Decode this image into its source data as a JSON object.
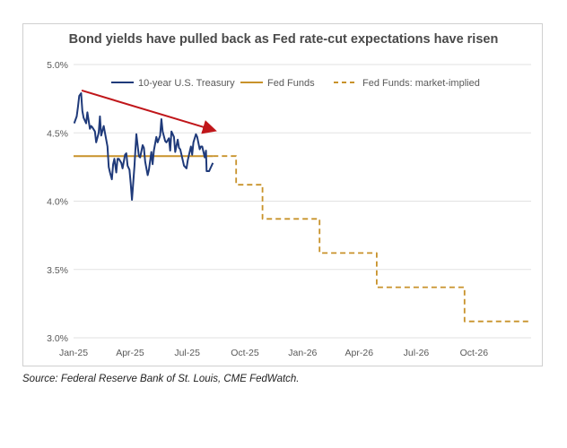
{
  "chart_data": {
    "type": "line",
    "title": "Bond yields have pulled back as Fed rate-cut expectations have risen",
    "xlabel": "",
    "ylabel": "",
    "x_ticks": [
      "Jan-25",
      "Apr-25",
      "Jul-25",
      "Oct-25",
      "Jan-26",
      "Apr-26",
      "Jul-26",
      "Oct-26"
    ],
    "y_ticks": [
      "3.0%",
      "3.5%",
      "4.0%",
      "4.5%",
      "5.0%"
    ],
    "ylim": [
      3.0,
      5.0
    ],
    "xlim": [
      "2025-01-01",
      "2026-12-31"
    ],
    "grid": "horizontal",
    "legend_position": "top",
    "series": [
      {
        "name": "10-year U.S. Treasury",
        "color": "#1f3a7a",
        "style": "solid",
        "points": [
          [
            "2025-01-02",
            4.57
          ],
          [
            "2025-01-06",
            4.62
          ],
          [
            "2025-01-08",
            4.69
          ],
          [
            "2025-01-10",
            4.77
          ],
          [
            "2025-01-13",
            4.79
          ],
          [
            "2025-01-15",
            4.66
          ],
          [
            "2025-01-17",
            4.61
          ],
          [
            "2025-01-21",
            4.57
          ],
          [
            "2025-01-23",
            4.65
          ],
          [
            "2025-01-27",
            4.53
          ],
          [
            "2025-01-29",
            4.55
          ],
          [
            "2025-01-31",
            4.54
          ],
          [
            "2025-02-04",
            4.51
          ],
          [
            "2025-02-06",
            4.43
          ],
          [
            "2025-02-10",
            4.5
          ],
          [
            "2025-02-12",
            4.62
          ],
          [
            "2025-02-14",
            4.48
          ],
          [
            "2025-02-18",
            4.55
          ],
          [
            "2025-02-20",
            4.5
          ],
          [
            "2025-02-24",
            4.4
          ],
          [
            "2025-02-26",
            4.25
          ],
          [
            "2025-02-28",
            4.21
          ],
          [
            "2025-03-03",
            4.16
          ],
          [
            "2025-03-05",
            4.27
          ],
          [
            "2025-03-07",
            4.31
          ],
          [
            "2025-03-10",
            4.21
          ],
          [
            "2025-03-12",
            4.31
          ],
          [
            "2025-03-14",
            4.31
          ],
          [
            "2025-03-18",
            4.28
          ],
          [
            "2025-03-20",
            4.24
          ],
          [
            "2025-03-24",
            4.34
          ],
          [
            "2025-03-26",
            4.35
          ],
          [
            "2025-03-28",
            4.26
          ],
          [
            "2025-03-31",
            4.23
          ],
          [
            "2025-04-02",
            4.13
          ],
          [
            "2025-04-04",
            4.01
          ],
          [
            "2025-04-08",
            4.26
          ],
          [
            "2025-04-09",
            4.34
          ],
          [
            "2025-04-11",
            4.49
          ],
          [
            "2025-04-15",
            4.33
          ],
          [
            "2025-04-17",
            4.32
          ],
          [
            "2025-04-21",
            4.41
          ],
          [
            "2025-04-23",
            4.39
          ],
          [
            "2025-04-25",
            4.29
          ],
          [
            "2025-04-29",
            4.19
          ],
          [
            "2025-05-01",
            4.23
          ],
          [
            "2025-05-05",
            4.36
          ],
          [
            "2025-05-07",
            4.27
          ],
          [
            "2025-05-09",
            4.37
          ],
          [
            "2025-05-13",
            4.47
          ],
          [
            "2025-05-15",
            4.43
          ],
          [
            "2025-05-19",
            4.48
          ],
          [
            "2025-05-21",
            4.6
          ],
          [
            "2025-05-23",
            4.51
          ],
          [
            "2025-05-27",
            4.44
          ],
          [
            "2025-05-29",
            4.43
          ],
          [
            "2025-06-02",
            4.46
          ],
          [
            "2025-06-04",
            4.37
          ],
          [
            "2025-06-06",
            4.51
          ],
          [
            "2025-06-10",
            4.47
          ],
          [
            "2025-06-12",
            4.36
          ],
          [
            "2025-06-16",
            4.45
          ],
          [
            "2025-06-18",
            4.39
          ],
          [
            "2025-06-20",
            4.38
          ],
          [
            "2025-06-24",
            4.3
          ],
          [
            "2025-06-26",
            4.26
          ],
          [
            "2025-06-30",
            4.24
          ],
          [
            "2025-07-02",
            4.3
          ],
          [
            "2025-07-07",
            4.4
          ],
          [
            "2025-07-09",
            4.34
          ],
          [
            "2025-07-11",
            4.43
          ],
          [
            "2025-07-15",
            4.49
          ],
          [
            "2025-07-17",
            4.47
          ],
          [
            "2025-07-21",
            4.38
          ],
          [
            "2025-07-23",
            4.4
          ],
          [
            "2025-07-25",
            4.4
          ],
          [
            "2025-07-29",
            4.32
          ],
          [
            "2025-07-31",
            4.37
          ],
          [
            "2025-08-01",
            4.22
          ],
          [
            "2025-08-05",
            4.22
          ],
          [
            "2025-08-07",
            4.24
          ],
          [
            "2025-08-11",
            4.28
          ]
        ]
      },
      {
        "name": "Fed Funds",
        "color": "#c8922a",
        "style": "solid",
        "points": [
          [
            "2025-01-01",
            4.33
          ],
          [
            "2025-08-11",
            4.33
          ]
        ]
      },
      {
        "name": "Fed Funds: market-implied",
        "color": "#c8922a",
        "style": "dashed",
        "points": [
          [
            "2025-08-11",
            4.33
          ],
          [
            "2025-09-17",
            4.33
          ],
          [
            "2025-09-17",
            4.12
          ],
          [
            "2025-10-29",
            4.12
          ],
          [
            "2025-10-29",
            3.87
          ],
          [
            "2025-12-10",
            3.87
          ],
          [
            "2026-01-28",
            3.87
          ],
          [
            "2026-01-28",
            3.62
          ],
          [
            "2026-03-18",
            3.62
          ],
          [
            "2026-04-29",
            3.62
          ],
          [
            "2026-04-29",
            3.37
          ],
          [
            "2026-06-17",
            3.37
          ],
          [
            "2026-07-29",
            3.37
          ],
          [
            "2026-09-16",
            3.37
          ],
          [
            "2026-09-16",
            3.12
          ],
          [
            "2026-12-31",
            3.12
          ]
        ]
      }
    ],
    "annotations": [
      {
        "type": "arrow",
        "color": "#c0161a",
        "from": [
          "2025-01-14",
          4.81
        ],
        "to": [
          "2025-08-12",
          4.52
        ]
      }
    ]
  },
  "source_text": "Source: Federal Reserve Bank of St. Louis, CME FedWatch."
}
